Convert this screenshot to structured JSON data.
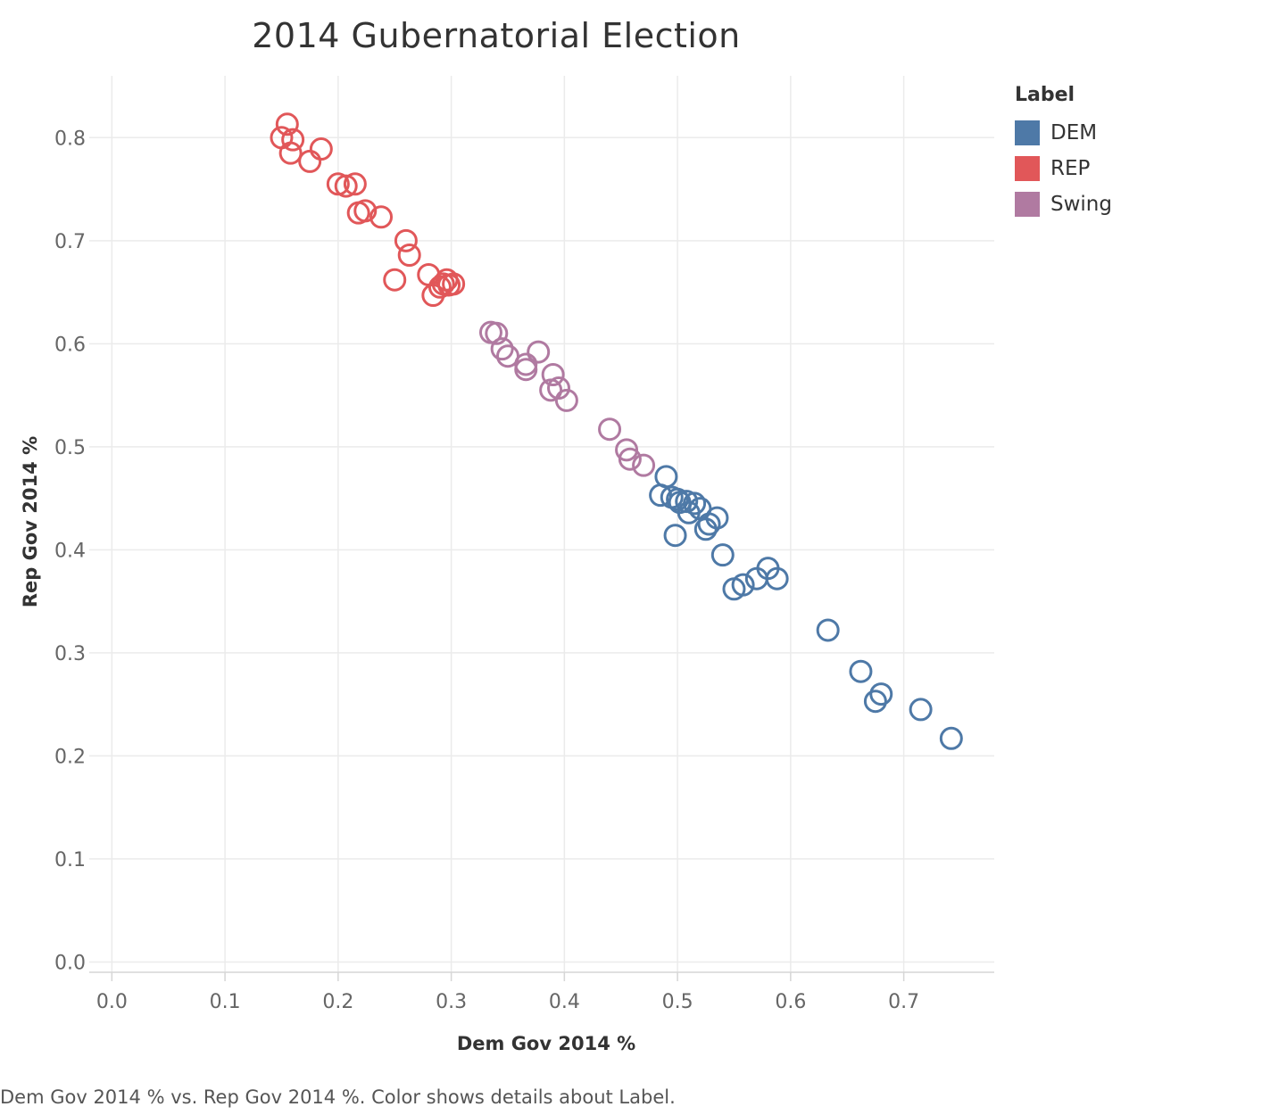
{
  "caption": "Dem Gov 2014 % vs. Rep Gov 2014 %.  Color shows details about Label.",
  "legend": {
    "title": "Label",
    "items": [
      {
        "label": "DEM",
        "color": "#4e79a7"
      },
      {
        "label": "REP",
        "color": "#e15759"
      },
      {
        "label": "Swing",
        "color": "#b07aa1"
      }
    ]
  },
  "chart_data": {
    "type": "scatter",
    "title": "2014 Gubernatorial Election",
    "xlabel": "Dem Gov 2014 %",
    "ylabel": "Rep Gov 2014 %",
    "xlim": [
      -0.02,
      0.78
    ],
    "ylim": [
      -0.01,
      0.86
    ],
    "x_ticks": [
      0.0,
      0.1,
      0.2,
      0.3,
      0.4,
      0.5,
      0.6,
      0.7
    ],
    "y_ticks": [
      0.0,
      0.1,
      0.2,
      0.3,
      0.4,
      0.5,
      0.6,
      0.7,
      0.8
    ],
    "tick_format": "0.1",
    "grid": true,
    "legend_position": "top-right",
    "marker": "hollow-circle",
    "series": [
      {
        "name": "REP",
        "color": "#e15759",
        "points": [
          [
            0.155,
            0.813
          ],
          [
            0.15,
            0.8
          ],
          [
            0.16,
            0.798
          ],
          [
            0.158,
            0.785
          ],
          [
            0.185,
            0.789
          ],
          [
            0.175,
            0.777
          ],
          [
            0.2,
            0.755
          ],
          [
            0.207,
            0.753
          ],
          [
            0.215,
            0.755
          ],
          [
            0.218,
            0.727
          ],
          [
            0.224,
            0.729
          ],
          [
            0.238,
            0.723
          ],
          [
            0.26,
            0.7
          ],
          [
            0.263,
            0.686
          ],
          [
            0.25,
            0.662
          ],
          [
            0.28,
            0.667
          ],
          [
            0.29,
            0.655
          ],
          [
            0.284,
            0.647
          ],
          [
            0.293,
            0.658
          ],
          [
            0.296,
            0.662
          ],
          [
            0.298,
            0.657
          ],
          [
            0.302,
            0.658
          ]
        ]
      },
      {
        "name": "Swing",
        "color": "#b07aa1",
        "points": [
          [
            0.335,
            0.611
          ],
          [
            0.34,
            0.61
          ],
          [
            0.345,
            0.595
          ],
          [
            0.35,
            0.588
          ],
          [
            0.366,
            0.58
          ],
          [
            0.377,
            0.592
          ],
          [
            0.366,
            0.575
          ],
          [
            0.39,
            0.57
          ],
          [
            0.388,
            0.555
          ],
          [
            0.395,
            0.557
          ],
          [
            0.402,
            0.545
          ],
          [
            0.44,
            0.517
          ],
          [
            0.455,
            0.497
          ],
          [
            0.458,
            0.488
          ],
          [
            0.47,
            0.482
          ]
        ]
      },
      {
        "name": "DEM",
        "color": "#4e79a7",
        "points": [
          [
            0.49,
            0.471
          ],
          [
            0.485,
            0.453
          ],
          [
            0.495,
            0.451
          ],
          [
            0.5,
            0.449
          ],
          [
            0.502,
            0.446
          ],
          [
            0.508,
            0.447
          ],
          [
            0.51,
            0.436
          ],
          [
            0.515,
            0.445
          ],
          [
            0.52,
            0.44
          ],
          [
            0.528,
            0.425
          ],
          [
            0.525,
            0.42
          ],
          [
            0.535,
            0.431
          ],
          [
            0.498,
            0.414
          ],
          [
            0.54,
            0.395
          ],
          [
            0.55,
            0.362
          ],
          [
            0.558,
            0.366
          ],
          [
            0.57,
            0.372
          ],
          [
            0.58,
            0.382
          ],
          [
            0.588,
            0.372
          ],
          [
            0.633,
            0.322
          ],
          [
            0.662,
            0.282
          ],
          [
            0.675,
            0.253
          ],
          [
            0.68,
            0.26
          ],
          [
            0.715,
            0.245
          ],
          [
            0.742,
            0.217
          ]
        ]
      }
    ]
  }
}
